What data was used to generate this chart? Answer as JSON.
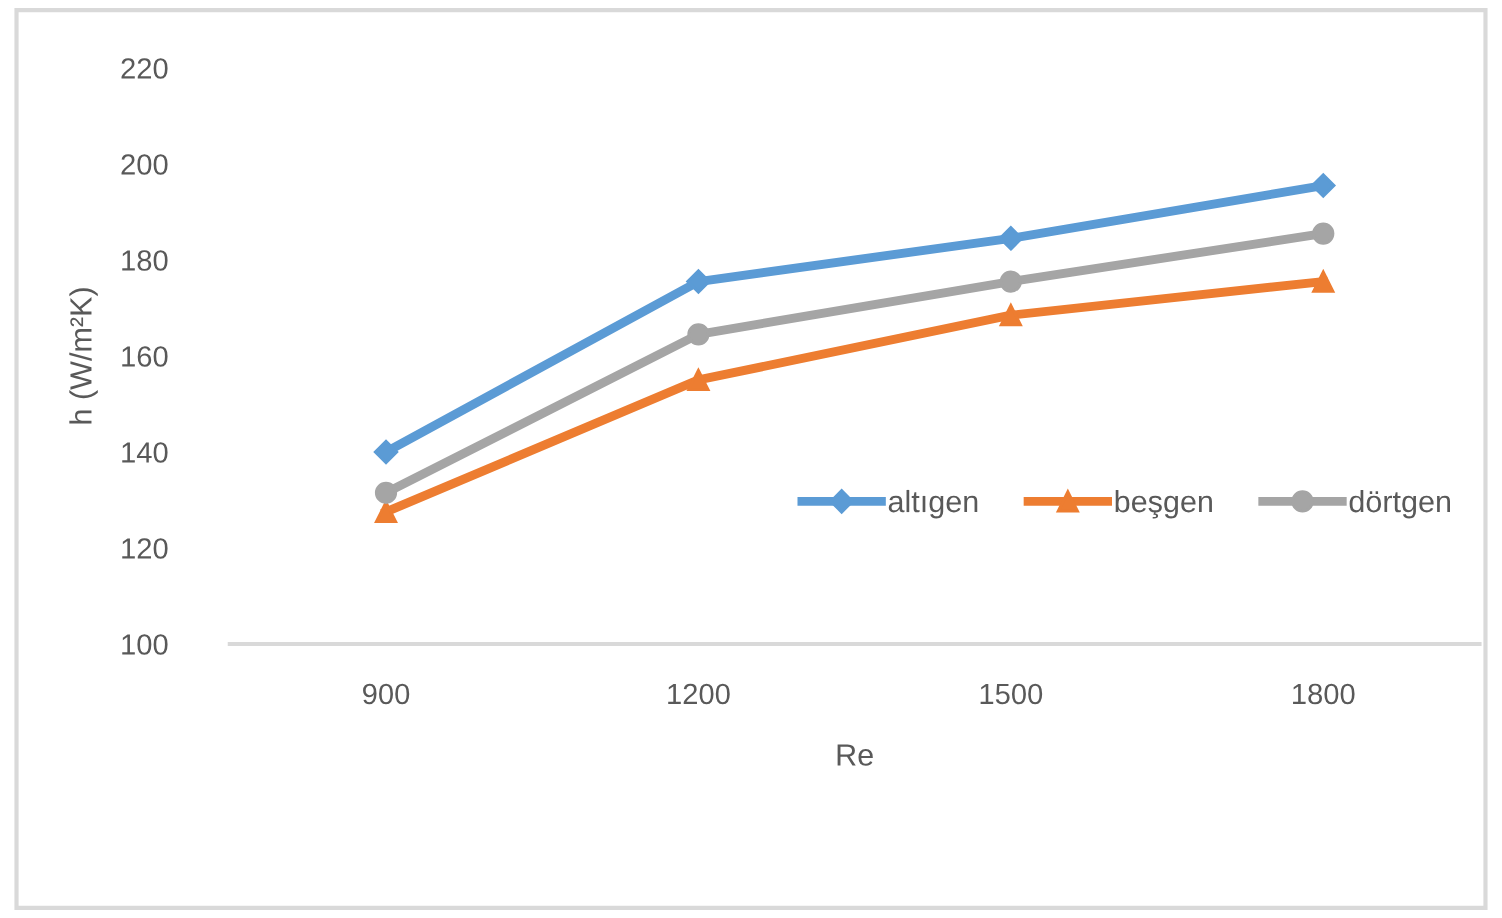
{
  "chart_data": {
    "type": "line",
    "xlabel": "Re",
    "ylabel": "h (W/m²K)",
    "categories": [
      "900",
      "1200",
      "1500",
      "1800"
    ],
    "series": [
      {
        "name": "altıgen",
        "color": "#5b9bd5",
        "marker": "diamond",
        "values": [
          140,
          175.5,
          184.5,
          195.5
        ]
      },
      {
        "name": "beşgen",
        "color": "#ed7d31",
        "marker": "triangle",
        "values": [
          127.5,
          155,
          168.5,
          175.5
        ]
      },
      {
        "name": "dörtgen",
        "color": "#a5a5a5",
        "marker": "circle",
        "values": [
          131.5,
          164.5,
          175.5,
          185.5
        ]
      }
    ],
    "ylim": [
      100,
      220
    ],
    "yticks": [
      100,
      120,
      140,
      160,
      180,
      200,
      220
    ],
    "grid": false,
    "legend": "right",
    "line_style": "solid"
  }
}
